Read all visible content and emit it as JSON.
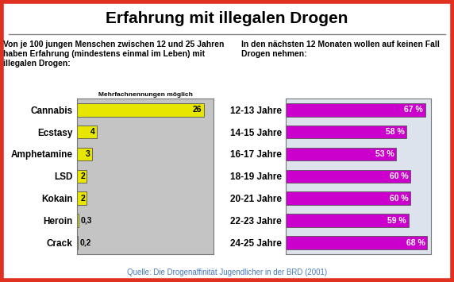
{
  "title": "Erfahrung mit illegalen Drogen",
  "source": "Quelle: Die Drogenaffinität Jugendlicher in der BRD (2001)",
  "chart_data": [
    {
      "type": "bar",
      "orientation": "horizontal",
      "title": "Von je 100 jungen Menschen zwischen 12 und 25 Jahren haben Erfahrung (mindestens einmal im Leben) mit illegalen Drogen:",
      "subtitle": "Mehrfachnennungen möglich",
      "categories": [
        "Cannabis",
        "Ecstasy",
        "Amphetamine",
        "LSD",
        "Kokain",
        "Heroin",
        "Crack"
      ],
      "values": [
        26,
        4,
        3,
        2,
        2,
        0.3,
        0.2
      ],
      "value_labels": [
        "26",
        "4",
        "3",
        "2",
        "2",
        "0,3",
        "0,2"
      ],
      "color": "#e6e600",
      "xlim": [
        0,
        28
      ],
      "data_labels": true,
      "tick_labels": "y"
    },
    {
      "type": "bar",
      "orientation": "horizontal",
      "title": "In den nächsten 12 Monaten wollen auf keinen Fall Drogen nehmen:",
      "categories": [
        "12-13 Jahre",
        "14-15 Jahre",
        "16-17 Jahre",
        "18-19 Jahre",
        "20-21 Jahre",
        "22-23 Jahre",
        "24-25 Jahre"
      ],
      "values": [
        67,
        58,
        53,
        60,
        60,
        59,
        68
      ],
      "value_labels": [
        "67 %",
        "58 %",
        "53 %",
        "60 %",
        "60 %",
        "59 %",
        "68 %"
      ],
      "color": "#cc00cc",
      "xlim": [
        0,
        70
      ],
      "data_labels": true,
      "tick_labels": "y"
    }
  ]
}
